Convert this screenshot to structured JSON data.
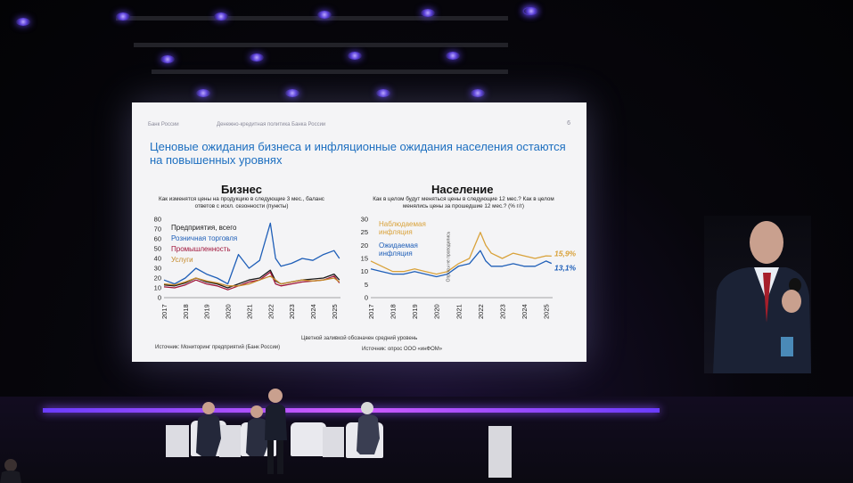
{
  "slide": {
    "logo": "Банк России",
    "header": "Денежно-кредитная политика Банка России",
    "page": "6",
    "title": "Ценовые ожидания бизнеса и инфляционные ожидания населения остаются на повышенных уровнях",
    "footnote": "Цветной заливкой обозначен средний уровень",
    "colors": {
      "title": "#1d6fc0",
      "background": "#f4f4f6"
    }
  },
  "chart_data": [
    {
      "type": "line",
      "title": "Бизнес",
      "subtitle": "Как изменятся цены на продукцию в следующие 3 мес., баланс ответов с искл. сезонности (пункты)",
      "source": "Источник: Мониторинг предприятий (Банк России)",
      "x": [
        2017,
        2017.5,
        2018,
        2018.5,
        2019,
        2019.5,
        2020,
        2020.5,
        2021,
        2021.5,
        2022,
        2022.25,
        2022.5,
        2023,
        2023.5,
        2024,
        2024.5,
        2025,
        2025.25
      ],
      "x_ticks": [
        "2017",
        "2018",
        "2019",
        "2020",
        "2021",
        "2022",
        "2023",
        "2024",
        "2025"
      ],
      "ylim": [
        0,
        80
      ],
      "y_ticks": [
        "0",
        "10",
        "20",
        "30",
        "40",
        "50",
        "60",
        "70",
        "80"
      ],
      "series": [
        {
          "name": "Предприятия, всего",
          "color": "#1a1a1a",
          "values": [
            13,
            12,
            15,
            20,
            16,
            14,
            10,
            14,
            18,
            20,
            28,
            17,
            14,
            16,
            18,
            19,
            20,
            24,
            18
          ]
        },
        {
          "name": "Розничная торговля",
          "color": "#1f5fb8",
          "values": [
            18,
            14,
            20,
            30,
            24,
            20,
            14,
            44,
            30,
            38,
            76,
            40,
            32,
            35,
            40,
            38,
            44,
            48,
            40
          ]
        },
        {
          "name": "Промышленность",
          "color": "#a0143a",
          "values": [
            11,
            10,
            13,
            18,
            14,
            12,
            8,
            12,
            16,
            18,
            26,
            14,
            12,
            14,
            16,
            17,
            18,
            22,
            15
          ]
        },
        {
          "name": "Услуги",
          "color": "#c58a2a",
          "values": [
            14,
            13,
            16,
            20,
            17,
            15,
            12,
            12,
            14,
            18,
            22,
            18,
            14,
            16,
            18,
            17,
            18,
            20,
            16
          ]
        }
      ]
    },
    {
      "type": "line",
      "title": "Население",
      "subtitle": "Как в целом будут меняться цены в следующие 12 мес.? Как в целом менялись цены за прошедшие 12 мес.? (% г/г)",
      "source": "Источник: опрос ООО «инФОМ»",
      "annotation": "Опросы не проводились",
      "x": [
        2017,
        2017.5,
        2018,
        2018.5,
        2019,
        2019.5,
        2020,
        2020.5,
        2021,
        2021.5,
        2022,
        2022.25,
        2022.5,
        2023,
        2023.5,
        2024,
        2024.5,
        2025,
        2025.25
      ],
      "x_ticks": [
        "2017",
        "2018",
        "2019",
        "2020",
        "2021",
        "2022",
        "2023",
        "2024",
        "2025"
      ],
      "ylim": [
        0,
        30
      ],
      "y_ticks": [
        "0",
        "5",
        "10",
        "15",
        "20",
        "25",
        "30"
      ],
      "series": [
        {
          "name": "Наблюдаемая инфляция",
          "color": "#d9a23a",
          "label": "15,9%",
          "values": [
            14,
            12,
            10,
            10,
            11,
            10,
            9,
            10,
            13,
            15,
            25,
            20,
            17,
            15,
            17,
            16,
            15,
            16,
            15.9
          ]
        },
        {
          "name": "Ожидаемая инфляция",
          "color": "#1f5fb8",
          "label": "13,1%",
          "values": [
            11,
            10,
            9,
            9,
            10,
            9,
            8,
            9,
            12,
            13,
            18,
            14,
            12,
            12,
            13,
            12,
            12,
            14,
            13.1
          ]
        }
      ]
    }
  ]
}
